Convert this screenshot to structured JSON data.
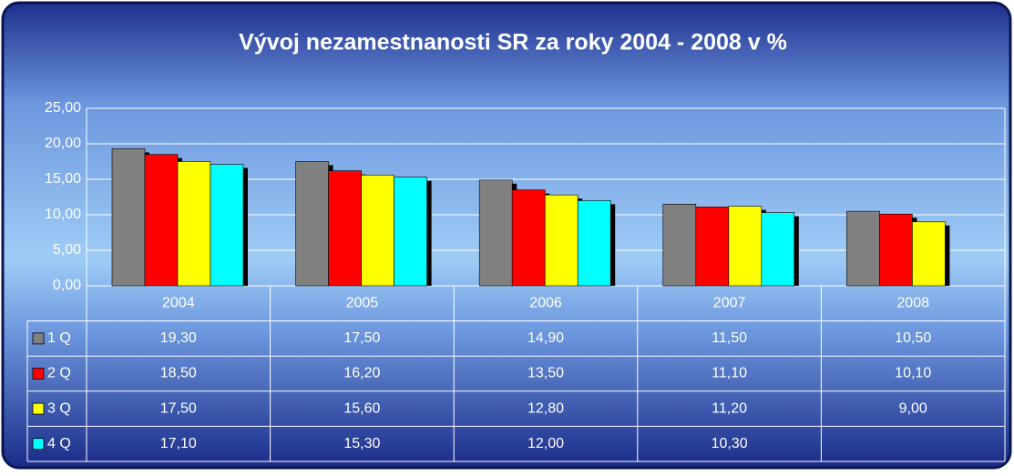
{
  "chart_data": {
    "type": "bar",
    "title": "Vývoj nezamestnanosti SR za roky 2004 - 2008 v %",
    "categories": [
      "2004",
      "2005",
      "2006",
      "2007",
      "2008"
    ],
    "series": [
      {
        "name": "1 Q",
        "color": "#808080",
        "values": [
          19.3,
          17.5,
          14.9,
          11.5,
          10.5
        ],
        "value_labels": [
          "19,30",
          "17,50",
          "14,90",
          "11,50",
          "10,50"
        ]
      },
      {
        "name": "2 Q",
        "color": "#ff0000",
        "values": [
          18.5,
          16.2,
          13.5,
          11.1,
          10.1
        ],
        "value_labels": [
          "18,50",
          "16,20",
          "13,50",
          "11,10",
          "10,10"
        ]
      },
      {
        "name": "3 Q",
        "color": "#ffff00",
        "values": [
          17.5,
          15.6,
          12.8,
          11.2,
          9.0
        ],
        "value_labels": [
          "17,50",
          "15,60",
          "12,80",
          "11,20",
          "9,00"
        ]
      },
      {
        "name": "4 Q",
        "color": "#00ffff",
        "values": [
          17.1,
          15.3,
          12.0,
          10.3,
          null
        ],
        "value_labels": [
          "17,10",
          "15,30",
          "12,00",
          "10,30",
          null
        ]
      }
    ],
    "ylim": [
      0,
      25
    ],
    "yticks": [
      {
        "value": 0,
        "label": "0,00"
      },
      {
        "value": 5,
        "label": "5,00"
      },
      {
        "value": 10,
        "label": "10,00"
      },
      {
        "value": 15,
        "label": "15,00"
      },
      {
        "value": 20,
        "label": "20,00"
      },
      {
        "value": 25,
        "label": "25,00"
      }
    ],
    "grid": true
  }
}
